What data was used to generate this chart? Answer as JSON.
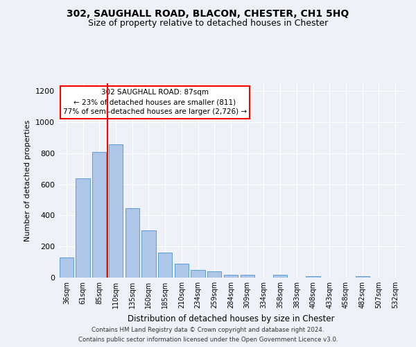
{
  "title1": "302, SAUGHALL ROAD, BLACON, CHESTER, CH1 5HQ",
  "title2": "Size of property relative to detached houses in Chester",
  "xlabel": "Distribution of detached houses by size in Chester",
  "ylabel": "Number of detached properties",
  "categories": [
    "36sqm",
    "61sqm",
    "85sqm",
    "110sqm",
    "135sqm",
    "160sqm",
    "185sqm",
    "210sqm",
    "234sqm",
    "259sqm",
    "284sqm",
    "309sqm",
    "334sqm",
    "358sqm",
    "383sqm",
    "408sqm",
    "433sqm",
    "458sqm",
    "482sqm",
    "507sqm",
    "532sqm"
  ],
  "values": [
    130,
    640,
    810,
    855,
    445,
    305,
    160,
    88,
    50,
    38,
    18,
    18,
    0,
    18,
    0,
    10,
    0,
    0,
    10,
    0,
    0
  ],
  "bar_color": "#aec6e8",
  "bar_edge_color": "#5a9fd4",
  "vline_color": "red",
  "annotation_text": "302 SAUGHALL ROAD: 87sqm\n← 23% of detached houses are smaller (811)\n77% of semi-detached houses are larger (2,726) →",
  "annotation_box_color": "white",
  "annotation_box_edge_color": "red",
  "ylim": [
    0,
    1250
  ],
  "yticks": [
    0,
    200,
    400,
    600,
    800,
    1000,
    1200
  ],
  "footer1": "Contains HM Land Registry data © Crown copyright and database right 2024.",
  "footer2": "Contains public sector information licensed under the Open Government Licence v3.0.",
  "bg_color": "#eef2f8",
  "plot_bg_color": "#eef2f8"
}
